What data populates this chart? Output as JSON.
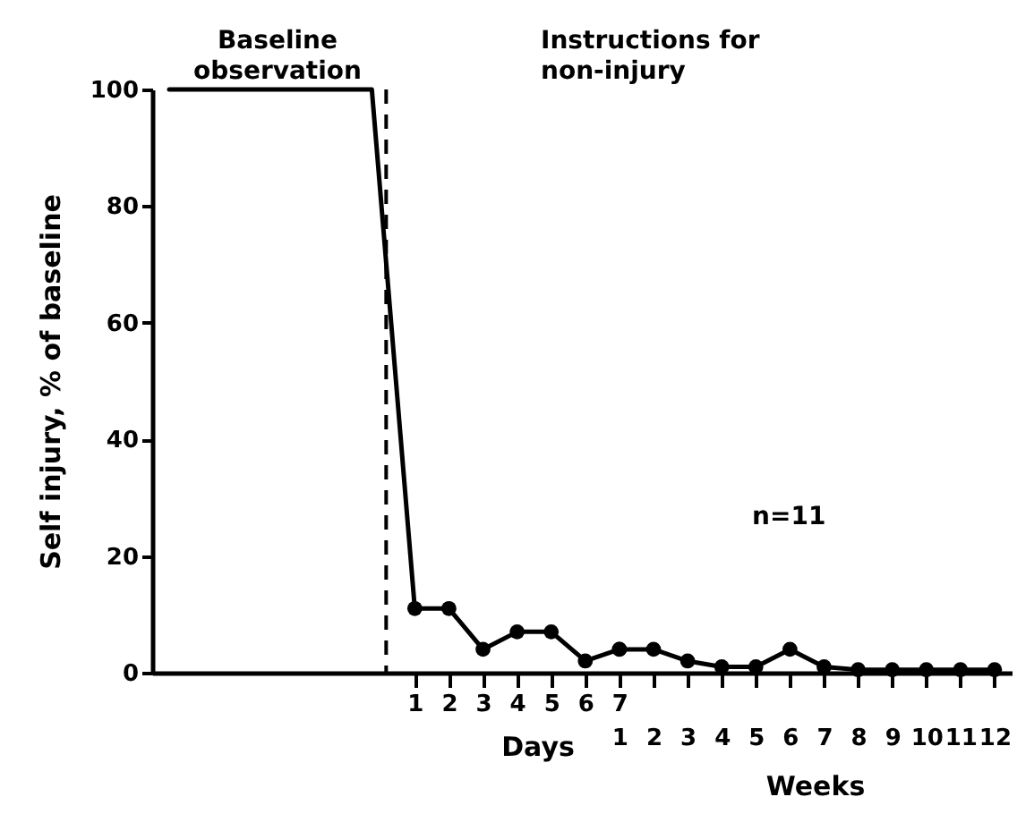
{
  "chart_data": {
    "type": "line",
    "xlabel": "Days",
    "x2label": "Weeks",
    "ylabel": "Self injury,  % of baseline",
    "xlim": [
      -6.7,
      18.5
    ],
    "xticks": [
      1,
      2,
      3,
      4,
      5,
      6,
      7
    ],
    "x2lim": [
      -12.7,
      12.5
    ],
    "x2ticks": [
      1,
      2,
      3,
      4,
      5,
      6,
      7,
      8,
      9,
      10,
      11,
      12
    ],
    "ylim": [
      0,
      100
    ],
    "yticks": [
      0,
      20,
      40,
      60,
      80,
      100
    ],
    "series": [
      {
        "color": "#000000",
        "x": [
          -6.2,
          -0.26,
          1
        ],
        "values": [
          100,
          100,
          11
        ]
      },
      {
        "color": "#000000",
        "marker": "circle",
        "x": [
          1,
          2,
          3,
          4,
          5,
          6,
          7
        ],
        "values": [
          11,
          11,
          4,
          7,
          7,
          2,
          4
        ]
      },
      {
        "color": "#000000",
        "marker": "circle",
        "axis": "x2",
        "x": [
          1,
          2,
          3,
          4,
          5,
          6,
          7,
          8,
          9,
          10,
          11,
          12
        ],
        "values": [
          4,
          4,
          2,
          1,
          1,
          4,
          1,
          0.5,
          0.5,
          0.5,
          0.5,
          0.5
        ]
      }
    ],
    "ref_lines": [
      {
        "axis": "x",
        "value": 0.16,
        "line_style": "dashed",
        "color": "#000000"
      }
    ],
    "annotations": [
      "Baseline\nobservation",
      "Instructions for\nnon-injury",
      "n=11"
    ]
  }
}
